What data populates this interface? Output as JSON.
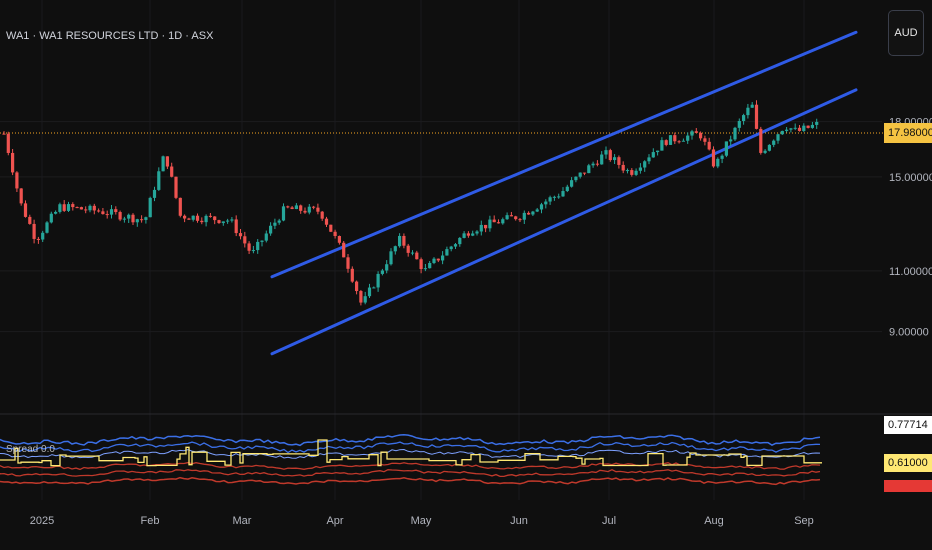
{
  "header": {
    "title": "WA1 · WA1 RESOURCES LTD · 1D · ASX",
    "currency": "AUD"
  },
  "colors": {
    "background": "#0f0f0f",
    "up": "#26a69a",
    "down": "#ef5350",
    "channel": "#2f5be6",
    "last_price_line": "#f5a623",
    "last_price_tag": "#f5c342",
    "indicator_yellow": "#ffe873",
    "indicator_blue": "#3b6fe6",
    "indicator_red": "#c0392b"
  },
  "chart_data": [
    {
      "type": "candlestick",
      "title": "WA1 · WA1 RESOURCES LTD · 1D · ASX",
      "x": [
        "2025",
        "Feb",
        "Mar",
        "Apr",
        "May",
        "Jun",
        "Jul",
        "Aug",
        "Sep"
      ],
      "y_ticks": [
        "18.00000",
        "15.00000",
        "11.00000",
        "9.00000"
      ],
      "last_price": "17.98000",
      "y_scale": "log",
      "channel": {
        "upper": [
          {
            "x": "Mar",
            "y": 10.35
          },
          {
            "x": "Sep",
            "y": 22.5
          }
        ],
        "lower": [
          {
            "x": "Mar",
            "y": 8.0
          },
          {
            "x": "Sep",
            "y": 18.5
          }
        ]
      },
      "grid": true
    },
    {
      "type": "line",
      "title": "",
      "name": "Spread 0.0",
      "y_labels": [
        "0.77714",
        "0.61000"
      ],
      "series": [
        {
          "name": "upper band",
          "color": "#3b6fe6"
        },
        {
          "name": "value",
          "color": "#ffe873"
        },
        {
          "name": "lower band",
          "color": "#c0392b"
        }
      ]
    }
  ]
}
